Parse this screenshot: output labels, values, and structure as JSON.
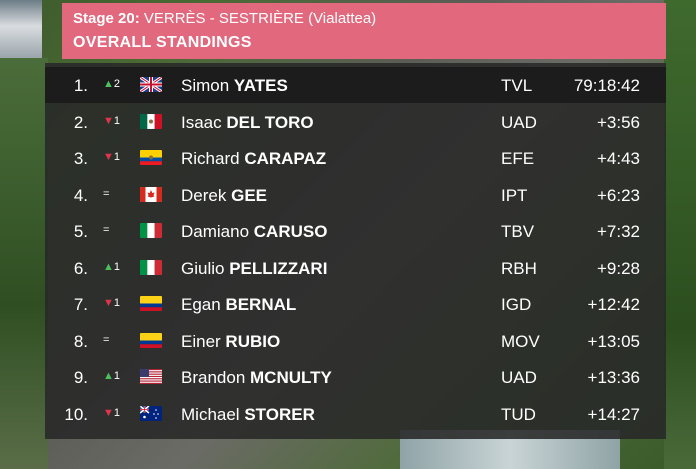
{
  "header": {
    "stage_label": "Stage 20:",
    "stage_route": "VERRÈS - SESTRIÈRE (Vialattea)",
    "title": "OVERALL STANDINGS"
  },
  "rows": [
    {
      "pos": "1.",
      "move_symbol": "▲",
      "move_num": "2",
      "move_dir": "up",
      "flag": "gbr",
      "first": "Simon",
      "last": "YATES",
      "team": "TVL",
      "time": "79:18:42"
    },
    {
      "pos": "2.",
      "move_symbol": "▼",
      "move_num": "1",
      "move_dir": "down",
      "flag": "mex",
      "first": "Isaac",
      "last": "DEL TORO",
      "team": "UAD",
      "time": "+3:56"
    },
    {
      "pos": "3.",
      "move_symbol": "▼",
      "move_num": "1",
      "move_dir": "down",
      "flag": "ecu",
      "first": "Richard",
      "last": "CARAPAZ",
      "team": "EFE",
      "time": "+4:43"
    },
    {
      "pos": "4.",
      "move_symbol": "=",
      "move_num": "",
      "move_dir": "same",
      "flag": "can",
      "first": "Derek",
      "last": "GEE",
      "team": "IPT",
      "time": "+6:23"
    },
    {
      "pos": "5.",
      "move_symbol": "=",
      "move_num": "",
      "move_dir": "same",
      "flag": "ita",
      "first": "Damiano",
      "last": "CARUSO",
      "team": "TBV",
      "time": "+7:32"
    },
    {
      "pos": "6.",
      "move_symbol": "▲",
      "move_num": "1",
      "move_dir": "up",
      "flag": "ita",
      "first": "Giulio",
      "last": "PELLIZZARI",
      "team": "RBH",
      "time": "+9:28"
    },
    {
      "pos": "7.",
      "move_symbol": "▼",
      "move_num": "1",
      "move_dir": "down",
      "flag": "col",
      "first": "Egan",
      "last": "BERNAL",
      "team": "IGD",
      "time": "+12:42"
    },
    {
      "pos": "8.",
      "move_symbol": "=",
      "move_num": "",
      "move_dir": "same",
      "flag": "col",
      "first": "Einer",
      "last": "RUBIO",
      "team": "MOV",
      "time": "+13:05"
    },
    {
      "pos": "9.",
      "move_symbol": "▲",
      "move_num": "1",
      "move_dir": "up",
      "flag": "usa",
      "first": "Brandon",
      "last": "MCNULTY",
      "team": "UAD",
      "time": "+13:36"
    },
    {
      "pos": "10.",
      "move_symbol": "▼",
      "move_num": "1",
      "move_dir": "down",
      "flag": "aus",
      "first": "Michael",
      "last": "STORER",
      "team": "TUD",
      "time": "+14:27"
    }
  ],
  "colors": {
    "header_bg": "#e2687e",
    "up": "#4cc05a",
    "down": "#e0344a"
  }
}
